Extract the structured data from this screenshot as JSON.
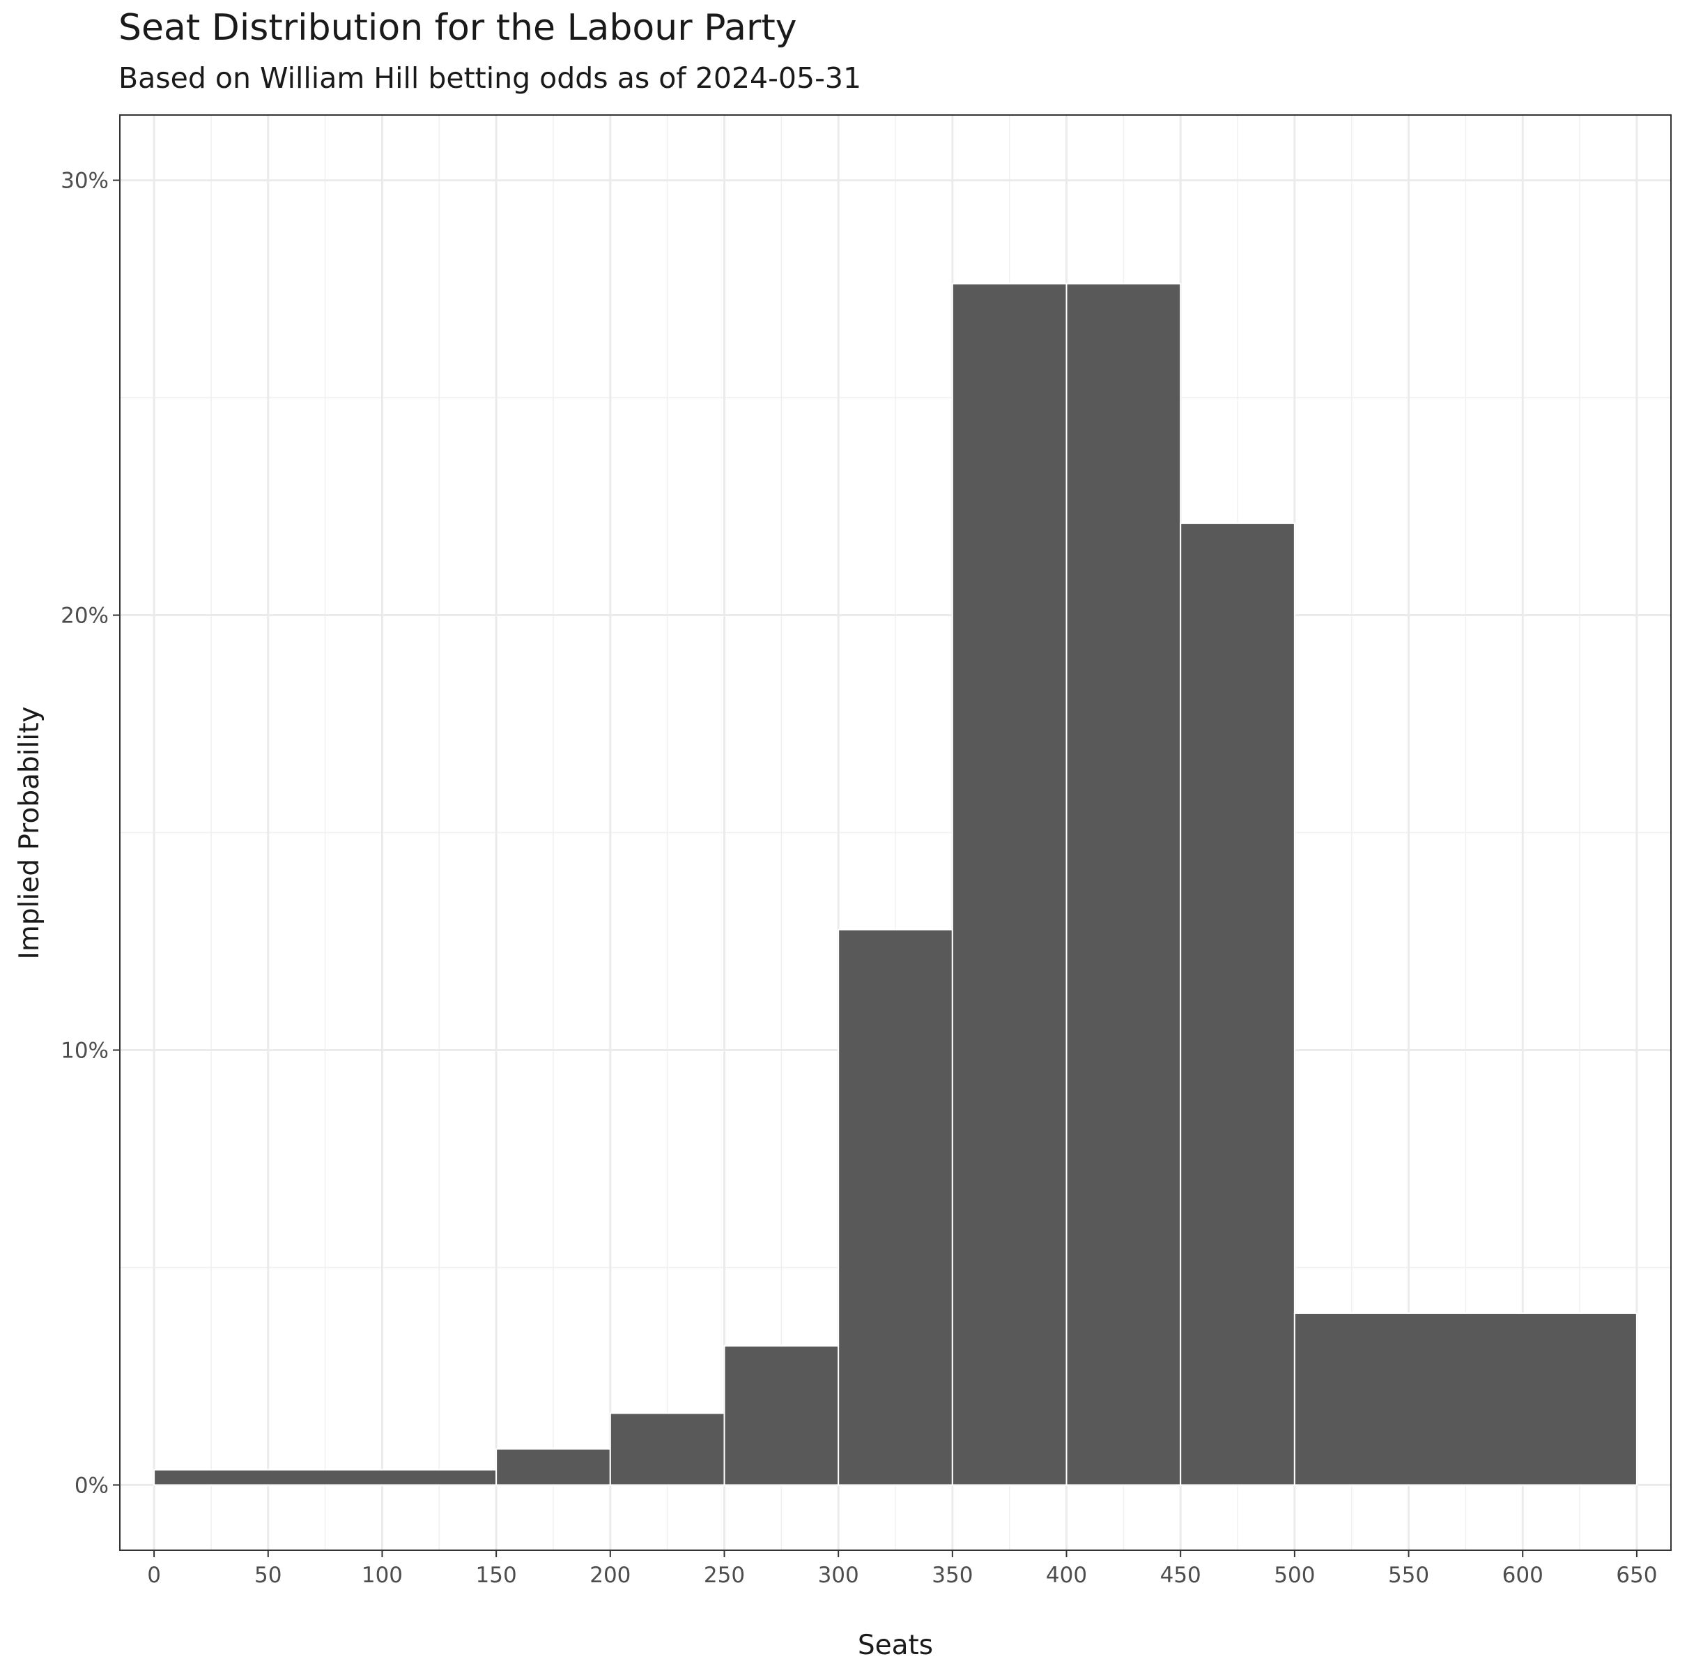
{
  "chart_data": {
    "type": "bar",
    "title": "Seat Distribution for the Labour Party",
    "subtitle": "Based on William Hill betting odds as of 2024-05-31",
    "xlabel": "Seats",
    "ylabel": "Implied Probability",
    "xlim": [
      -15,
      665
    ],
    "ylim": [
      -0.015,
      0.315
    ],
    "x_ticks": [
      0,
      50,
      100,
      150,
      200,
      250,
      300,
      350,
      400,
      450,
      500,
      550,
      600,
      650
    ],
    "y_ticks": [
      0,
      0.1,
      0.2,
      0.3
    ],
    "y_tick_labels": [
      "0%",
      "10%",
      "20%",
      "30%"
    ],
    "grid": true,
    "bar_color": "#595959",
    "bar_edge_color": "#ffffff",
    "bins": [
      {
        "from": 0,
        "to": 150,
        "value": 0.0035
      },
      {
        "from": 150,
        "to": 200,
        "value": 0.0083
      },
      {
        "from": 200,
        "to": 250,
        "value": 0.0165
      },
      {
        "from": 250,
        "to": 300,
        "value": 0.032
      },
      {
        "from": 300,
        "to": 350,
        "value": 0.1277
      },
      {
        "from": 350,
        "to": 400,
        "value": 0.2762
      },
      {
        "from": 400,
        "to": 450,
        "value": 0.2762
      },
      {
        "from": 450,
        "to": 500,
        "value": 0.2211
      },
      {
        "from": 500,
        "to": 650,
        "value": 0.0395
      }
    ]
  }
}
